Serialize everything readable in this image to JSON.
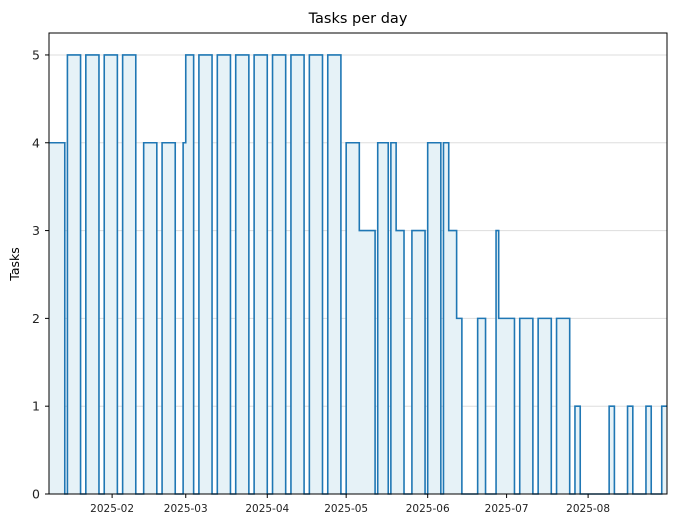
{
  "colors": {
    "line": "#1f77b4",
    "fill": "#e6f2f7",
    "grid": "#dddddd",
    "axis": "#000000",
    "background": "#ffffff"
  },
  "chart_data": {
    "type": "area",
    "step": "post",
    "title": "Tasks per day",
    "xlabel": "",
    "ylabel": "Tasks",
    "ylim": [
      0,
      5.25
    ],
    "xlim": [
      "2025-01-08",
      "2025-08-31"
    ],
    "grid": {
      "y": true,
      "x": false
    },
    "x_ticks": [
      "2025-02",
      "2025-03",
      "2025-04",
      "2025-05",
      "2025-06",
      "2025-07",
      "2025-08"
    ],
    "y_ticks": [
      0,
      1,
      2,
      3,
      4,
      5
    ],
    "x": [
      "2025-01-08",
      "2025-01-14",
      "2025-01-15",
      "2025-01-20",
      "2025-01-22",
      "2025-01-27",
      "2025-01-29",
      "2025-02-03",
      "2025-02-05",
      "2025-02-10",
      "2025-02-13",
      "2025-02-18",
      "2025-02-20",
      "2025-02-25",
      "2025-02-28",
      "2025-03-01",
      "2025-03-04",
      "2025-03-06",
      "2025-03-11",
      "2025-03-13",
      "2025-03-18",
      "2025-03-20",
      "2025-03-25",
      "2025-03-27",
      "2025-04-01",
      "2025-04-03",
      "2025-04-08",
      "2025-04-10",
      "2025-04-15",
      "2025-04-17",
      "2025-04-22",
      "2025-04-24",
      "2025-04-29",
      "2025-05-01",
      "2025-05-03",
      "2025-05-06",
      "2025-05-09",
      "2025-05-12",
      "2025-05-13",
      "2025-05-17",
      "2025-05-18",
      "2025-05-20",
      "2025-05-23",
      "2025-05-26",
      "2025-05-31",
      "2025-06-01",
      "2025-06-06",
      "2025-06-07",
      "2025-06-09",
      "2025-06-12",
      "2025-06-14",
      "2025-06-20",
      "2025-06-23",
      "2025-06-27",
      "2025-06-28",
      "2025-07-04",
      "2025-07-06",
      "2025-07-11",
      "2025-07-13",
      "2025-07-18",
      "2025-07-20",
      "2025-07-25",
      "2025-07-27",
      "2025-07-29",
      "2025-08-01",
      "2025-08-05",
      "2025-08-09",
      "2025-08-11",
      "2025-08-16",
      "2025-08-18",
      "2025-08-23",
      "2025-08-25",
      "2025-08-29",
      "2025-08-31"
    ],
    "series": [
      {
        "values": [
          4,
          0,
          5,
          0,
          5,
          0,
          5,
          0,
          5,
          0,
          4,
          0,
          4,
          0,
          4,
          5,
          0,
          5,
          0,
          5,
          0,
          5,
          0,
          5,
          0,
          5,
          0,
          5,
          0,
          5,
          0,
          5,
          0,
          4,
          4,
          3,
          3,
          0,
          4,
          0,
          4,
          3,
          0,
          3,
          0,
          4,
          0,
          4,
          3,
          2,
          0,
          2,
          0,
          3,
          2,
          0,
          2,
          0,
          2,
          0,
          2,
          0,
          1,
          0,
          0,
          0,
          1,
          0,
          1,
          0,
          1,
          0,
          1,
          1
        ]
      }
    ]
  }
}
